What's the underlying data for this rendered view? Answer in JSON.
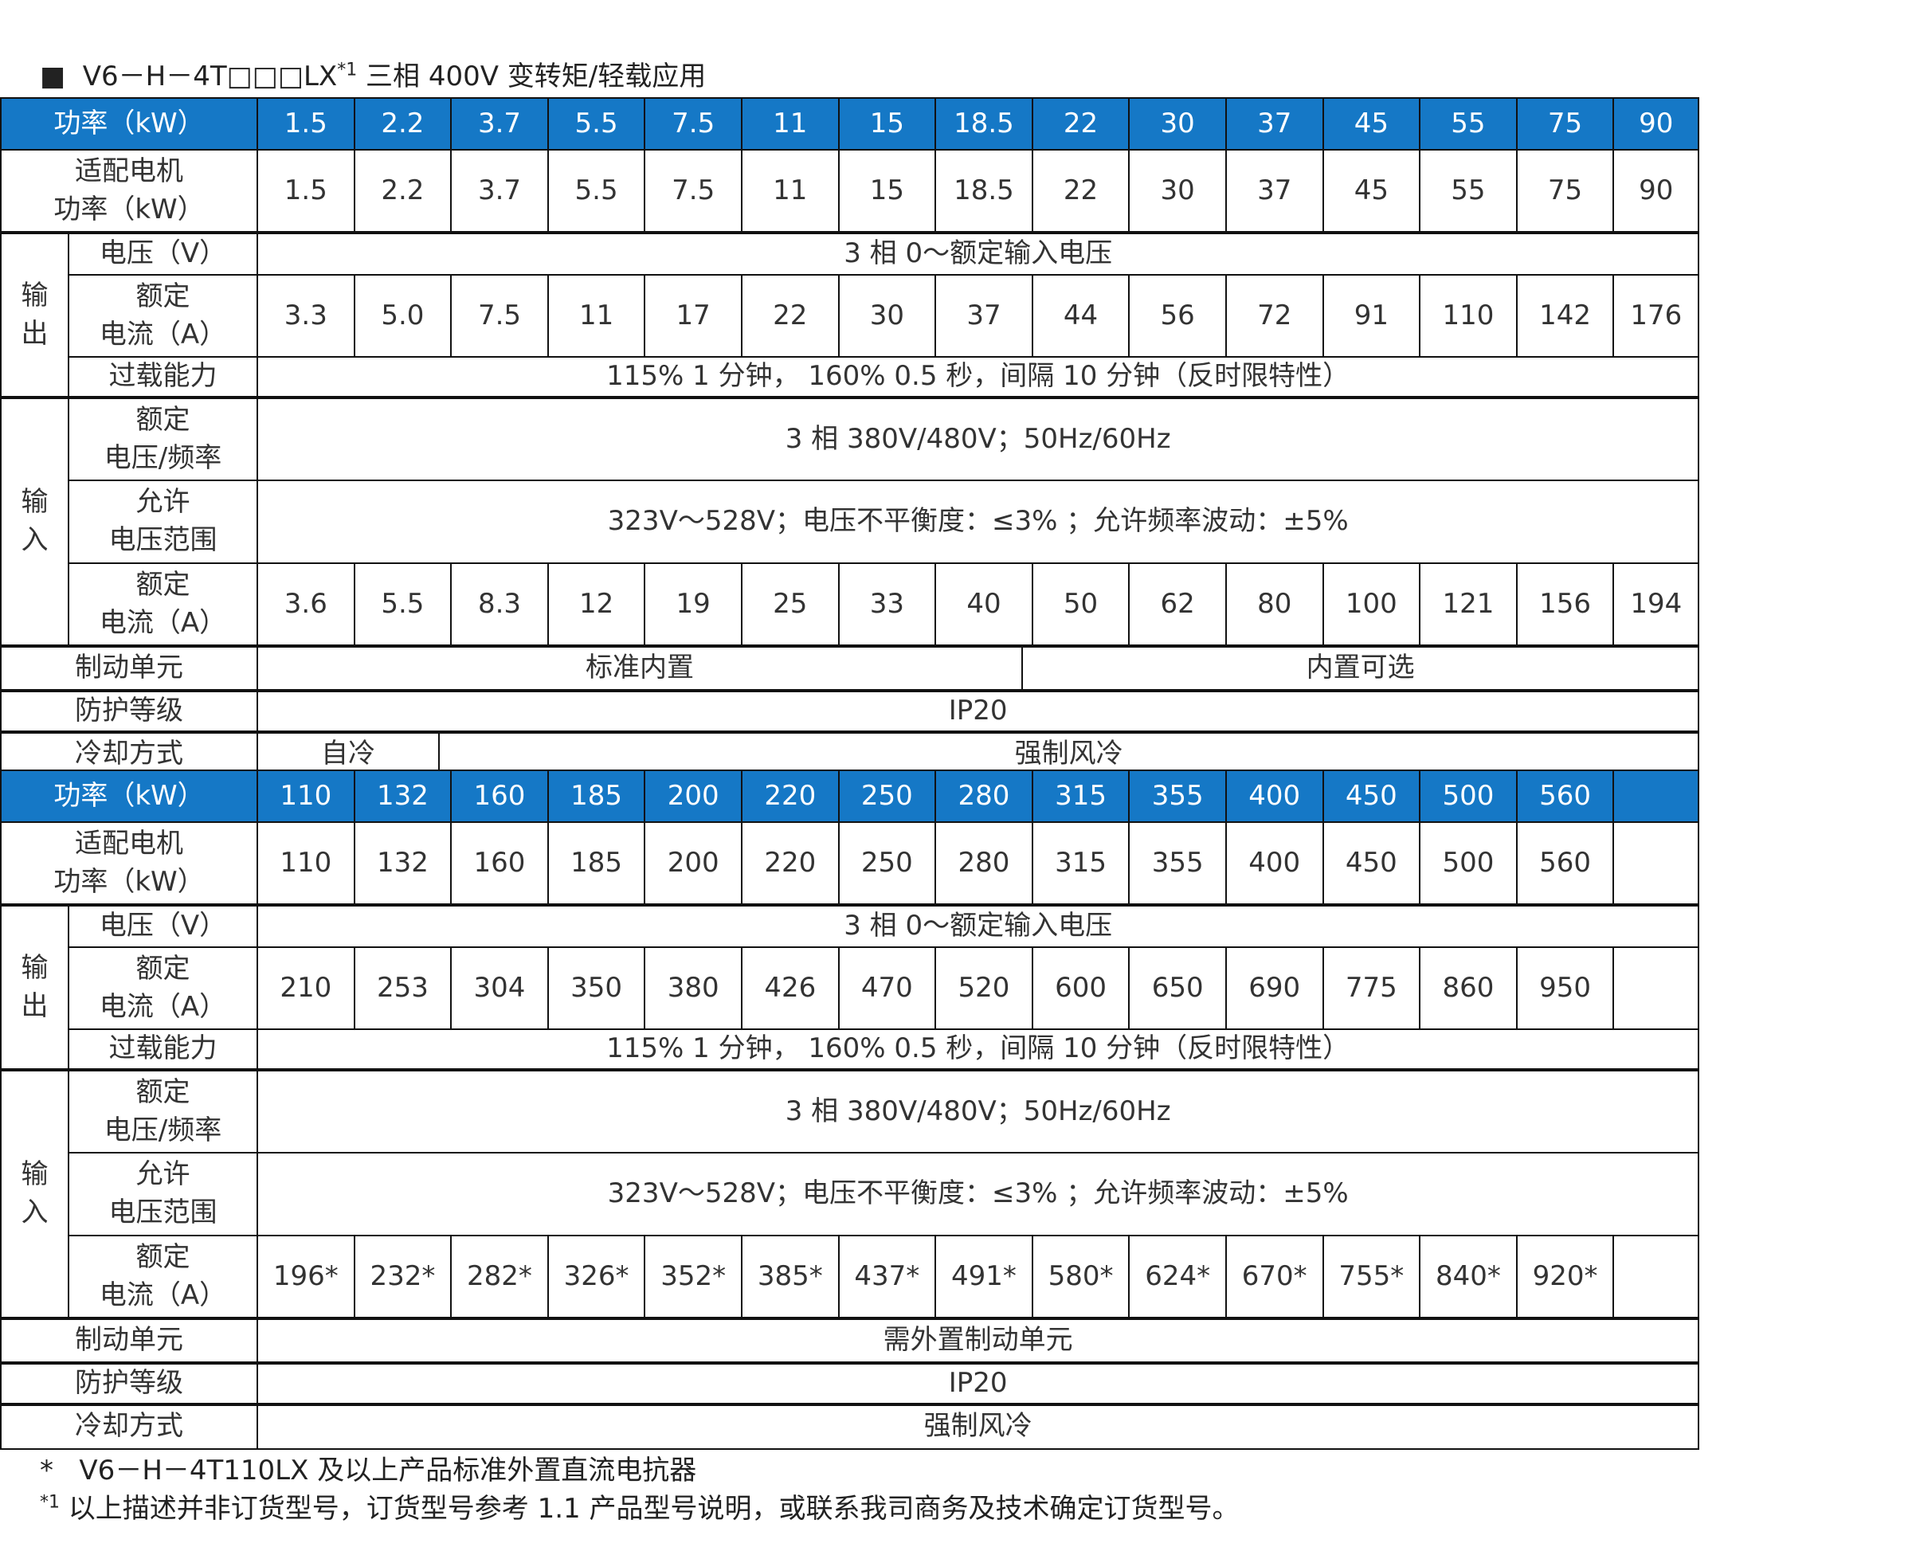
{
  "title": {
    "bullet": "■",
    "prefix": "V6－H－4T□□□LX",
    "sup": "*1",
    "suffix": " 三相 400V 变转矩/轻载应用"
  },
  "colors": {
    "header_bg": "#1578c6",
    "header_text": "#ffffff"
  },
  "labels": {
    "power": "功率（kW）",
    "motor": "适配电机\n功率（kW）",
    "output": "输\n出",
    "out_voltage": "电压（V）",
    "out_current": "额定\n电流（A）",
    "overload": "过载能力",
    "input": "输\n入",
    "in_voltage": "额定\n电压/频率",
    "in_range": "允许\n电压范围",
    "in_current": "额定\n电流（A）",
    "brake": "制动单元",
    "protection": "防护等级",
    "cooling": "冷却方式"
  },
  "sections": [
    {
      "power": [
        "1.5",
        "2.2",
        "3.7",
        "5.5",
        "7.5",
        "11",
        "15",
        "18.5",
        "22",
        "30",
        "37",
        "45",
        "55",
        "75",
        "90"
      ],
      "motor": [
        "1.5",
        "2.2",
        "3.7",
        "5.5",
        "7.5",
        "11",
        "15",
        "18.5",
        "22",
        "30",
        "37",
        "45",
        "55",
        "75",
        "90"
      ],
      "out_voltage": "3 相 0～额定输入电压",
      "out_current": [
        "3.3",
        "5.0",
        "7.5",
        "11",
        "17",
        "22",
        "30",
        "37",
        "44",
        "56",
        "72",
        "91",
        "110",
        "142",
        "176"
      ],
      "overload": "115%   1 分钟，  160%   0.5 秒，间隔  10 分钟（反时限特性）",
      "in_voltage": "3 相 380V/480V；50Hz/60Hz",
      "in_range": "323V～528V；电压不平衡度：≤3% ；允许频率波动：±5%",
      "in_current": [
        "3.6",
        "5.5",
        "8.3",
        "12",
        "19",
        "25",
        "33",
        "40",
        "50",
        "62",
        "80",
        "100",
        "121",
        "156",
        "194"
      ],
      "brake": [
        "标准内置",
        "内置可选"
      ],
      "protection": "IP20",
      "cooling": [
        "自冷",
        "强制风冷"
      ]
    },
    {
      "power": [
        "110",
        "132",
        "160",
        "185",
        "200",
        "220",
        "250",
        "280",
        "315",
        "355",
        "400",
        "450",
        "500",
        "560",
        ""
      ],
      "motor": [
        "110",
        "132",
        "160",
        "185",
        "200",
        "220",
        "250",
        "280",
        "315",
        "355",
        "400",
        "450",
        "500",
        "560",
        ""
      ],
      "out_voltage": "3 相 0～额定输入电压",
      "out_current": [
        "210",
        "253",
        "304",
        "350",
        "380",
        "426",
        "470",
        "520",
        "600",
        "650",
        "690",
        "775",
        "860",
        "950",
        ""
      ],
      "overload": "115%   1 分钟，  160%   0.5 秒，间隔  10 分钟（反时限特性）",
      "in_voltage": "3 相 380V/480V；50Hz/60Hz",
      "in_range": "323V～528V；电压不平衡度：≤3% ；允许频率波动：±5%",
      "in_current": [
        "196*",
        "232*",
        "282*",
        "326*",
        "352*",
        "385*",
        "437*",
        "491*",
        "580*",
        "624*",
        "670*",
        "755*",
        "840*",
        "920*",
        ""
      ],
      "brake": [
        "需外置制动单元"
      ],
      "protection": "IP20",
      "cooling": [
        "强制风冷"
      ]
    }
  ],
  "footnotes": [
    {
      "mark": "*",
      "text": "   V6－H－4T110LX 及以上产品标准外置直流电抗器"
    },
    {
      "mark": "*1",
      "text": " 以上描述并非订货型号，订货型号参考 1.1 产品型号说明，或联系我司商务及技术确定订货型号。"
    }
  ]
}
